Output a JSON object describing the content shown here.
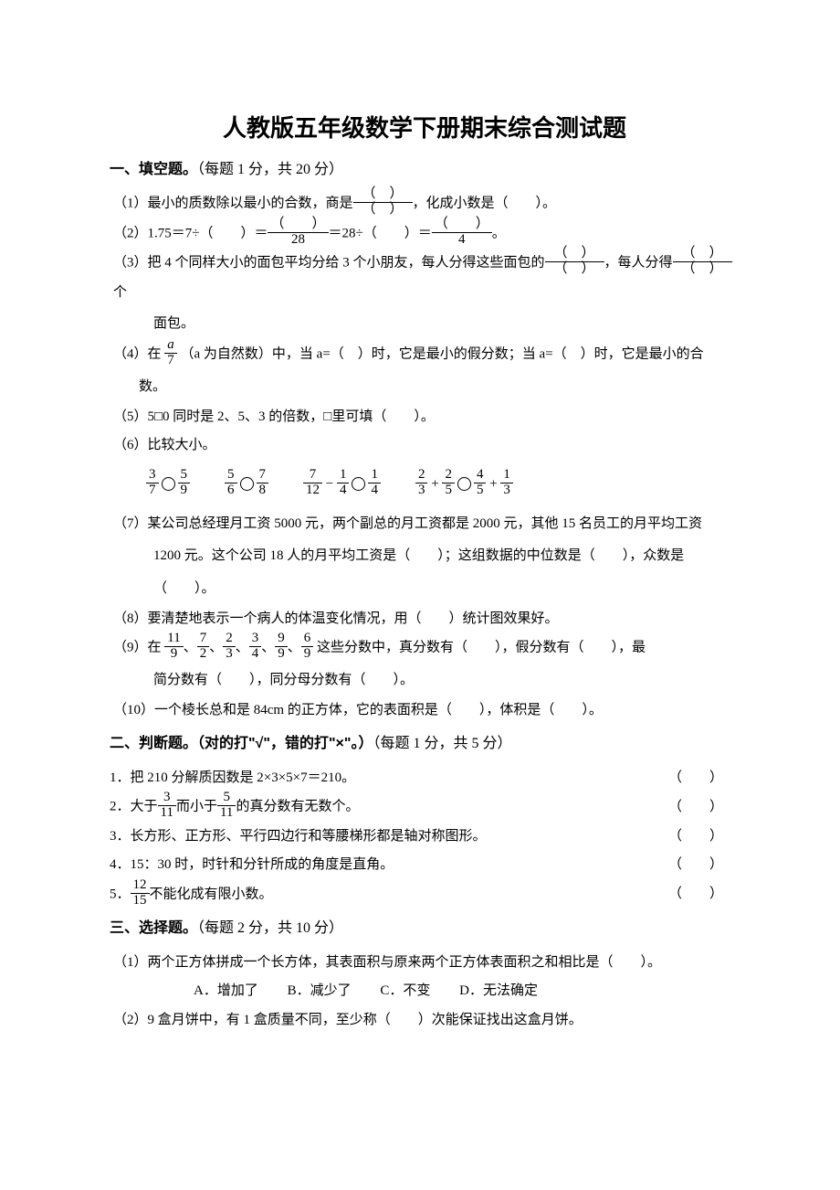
{
  "title": "人教版五年级数学下册期末综合测试题",
  "sections": {
    "fill": {
      "header_bold": "一、填空题。",
      "header_note": "（每题 1 分，共 20 分）"
    },
    "judge": {
      "header_bold": "二、判断题。（对的打\"√\"，错的打\"×\"。）",
      "header_note": "（每题 1 分，共 5 分）"
    },
    "choice": {
      "header_bold": "三、选择题。",
      "header_note": "（每题 2 分，共 10 分）"
    }
  },
  "q1": {
    "prefix": "（1）最小的质数除以最小的合数，商是",
    "suffix": "，化成小数是（　　）。"
  },
  "q2": {
    "prefix": "（2）1.75＝7÷（　　）＝",
    "mid": "＝28÷（　　）＝",
    "suffix": "。",
    "den1": "28",
    "den2": "4"
  },
  "q3": {
    "prefix": "（3）把 4 个同样大小的面包平均分给 3 个小朋友，每人分得这些面包的",
    "mid": "，每人分得",
    "suffix": "个",
    "line2": "面包。"
  },
  "q4": {
    "prefix": "（4）在",
    "frac_num": "a",
    "frac_den": "7",
    "mid": "（a 为自然数）中，当 a=（　）时，它是最小的假分数；当 a=（　）时，它是最小的合",
    "line2": "数。"
  },
  "q5": "（5）5□0 同时是 2、5、3 的倍数，□里可填（　　）。",
  "q6": "（6）比较大小。",
  "q7": {
    "text": "（7）某公司总经理月工资 5000 元，两个副总的月工资都是 2000 元，其他 15 名员工的月平均工资",
    "line2": "1200 元。这个公司 18 人的月平均工资是（　　）；这组数据的中位数是（　　），众数是",
    "line3": "（　　）。"
  },
  "q8": "（8）要清楚地表示一个病人的体温变化情况，用（　　）统计图效果好。",
  "q9": {
    "prefix": "（9）在",
    "suffix": "这些分数中，真分数有（　　），假分数有（　　），最",
    "line2": "简分数有（　　），同分母分数有（　　）。",
    "fracs": [
      {
        "n": "11",
        "d": "9"
      },
      {
        "n": "7",
        "d": "2"
      },
      {
        "n": "2",
        "d": "3"
      },
      {
        "n": "3",
        "d": "4"
      },
      {
        "n": "9",
        "d": "9"
      },
      {
        "n": "6",
        "d": "9"
      }
    ]
  },
  "q10": "（10）一个棱长总和是 84cm 的正方体，它的表面积是（　　），体积是（　　）。",
  "judge": {
    "j1": "1．把 210 分解质因数是 2×3×5×7＝210。",
    "j2_pre": "2．大于",
    "j2_mid": "而小于",
    "j2_suf": "的真分数有无数个。",
    "j2_f1": {
      "n": "3",
      "d": "11"
    },
    "j2_f2": {
      "n": "5",
      "d": "11"
    },
    "j3": "3．长方形、正方形、平行四边行和等腰梯形都是轴对称图形。",
    "j4": "4．15：30 时，时针和分针所成的角度是直角。",
    "j5_pre": "5．",
    "j5_suf": "不能化成有限小数。",
    "j5_f": {
      "n": "12",
      "d": "15"
    }
  },
  "choice": {
    "c1": "（1）两个正方体拼成一个长方体，其表面积与原来两个正方体表面积之和相比是（　　）。",
    "c1_opts": [
      "A．增加了",
      "B．减少了",
      "C．不变",
      "D．无法确定"
    ],
    "c2": "（2）9 盒月饼中，有 1 盒质量不同，至少称（　　）次能保证找出这盒月饼。"
  },
  "compare": {
    "g1": {
      "a": {
        "n": "3",
        "d": "7"
      },
      "b": {
        "n": "5",
        "d": "9"
      }
    },
    "g2": {
      "a": {
        "n": "5",
        "d": "6"
      },
      "b": {
        "n": "7",
        "d": "8"
      }
    },
    "g3": {
      "a": {
        "n": "7",
        "d": "12"
      },
      "op": "−",
      "b": {
        "n": "1",
        "d": "4"
      },
      "c": {
        "n": "1",
        "d": "4"
      }
    },
    "g4": {
      "a": {
        "n": "2",
        "d": "3"
      },
      "b": {
        "n": "2",
        "d": "5"
      },
      "c": {
        "n": "4",
        "d": "5"
      },
      "d": {
        "n": "1",
        "d": "3"
      }
    }
  }
}
